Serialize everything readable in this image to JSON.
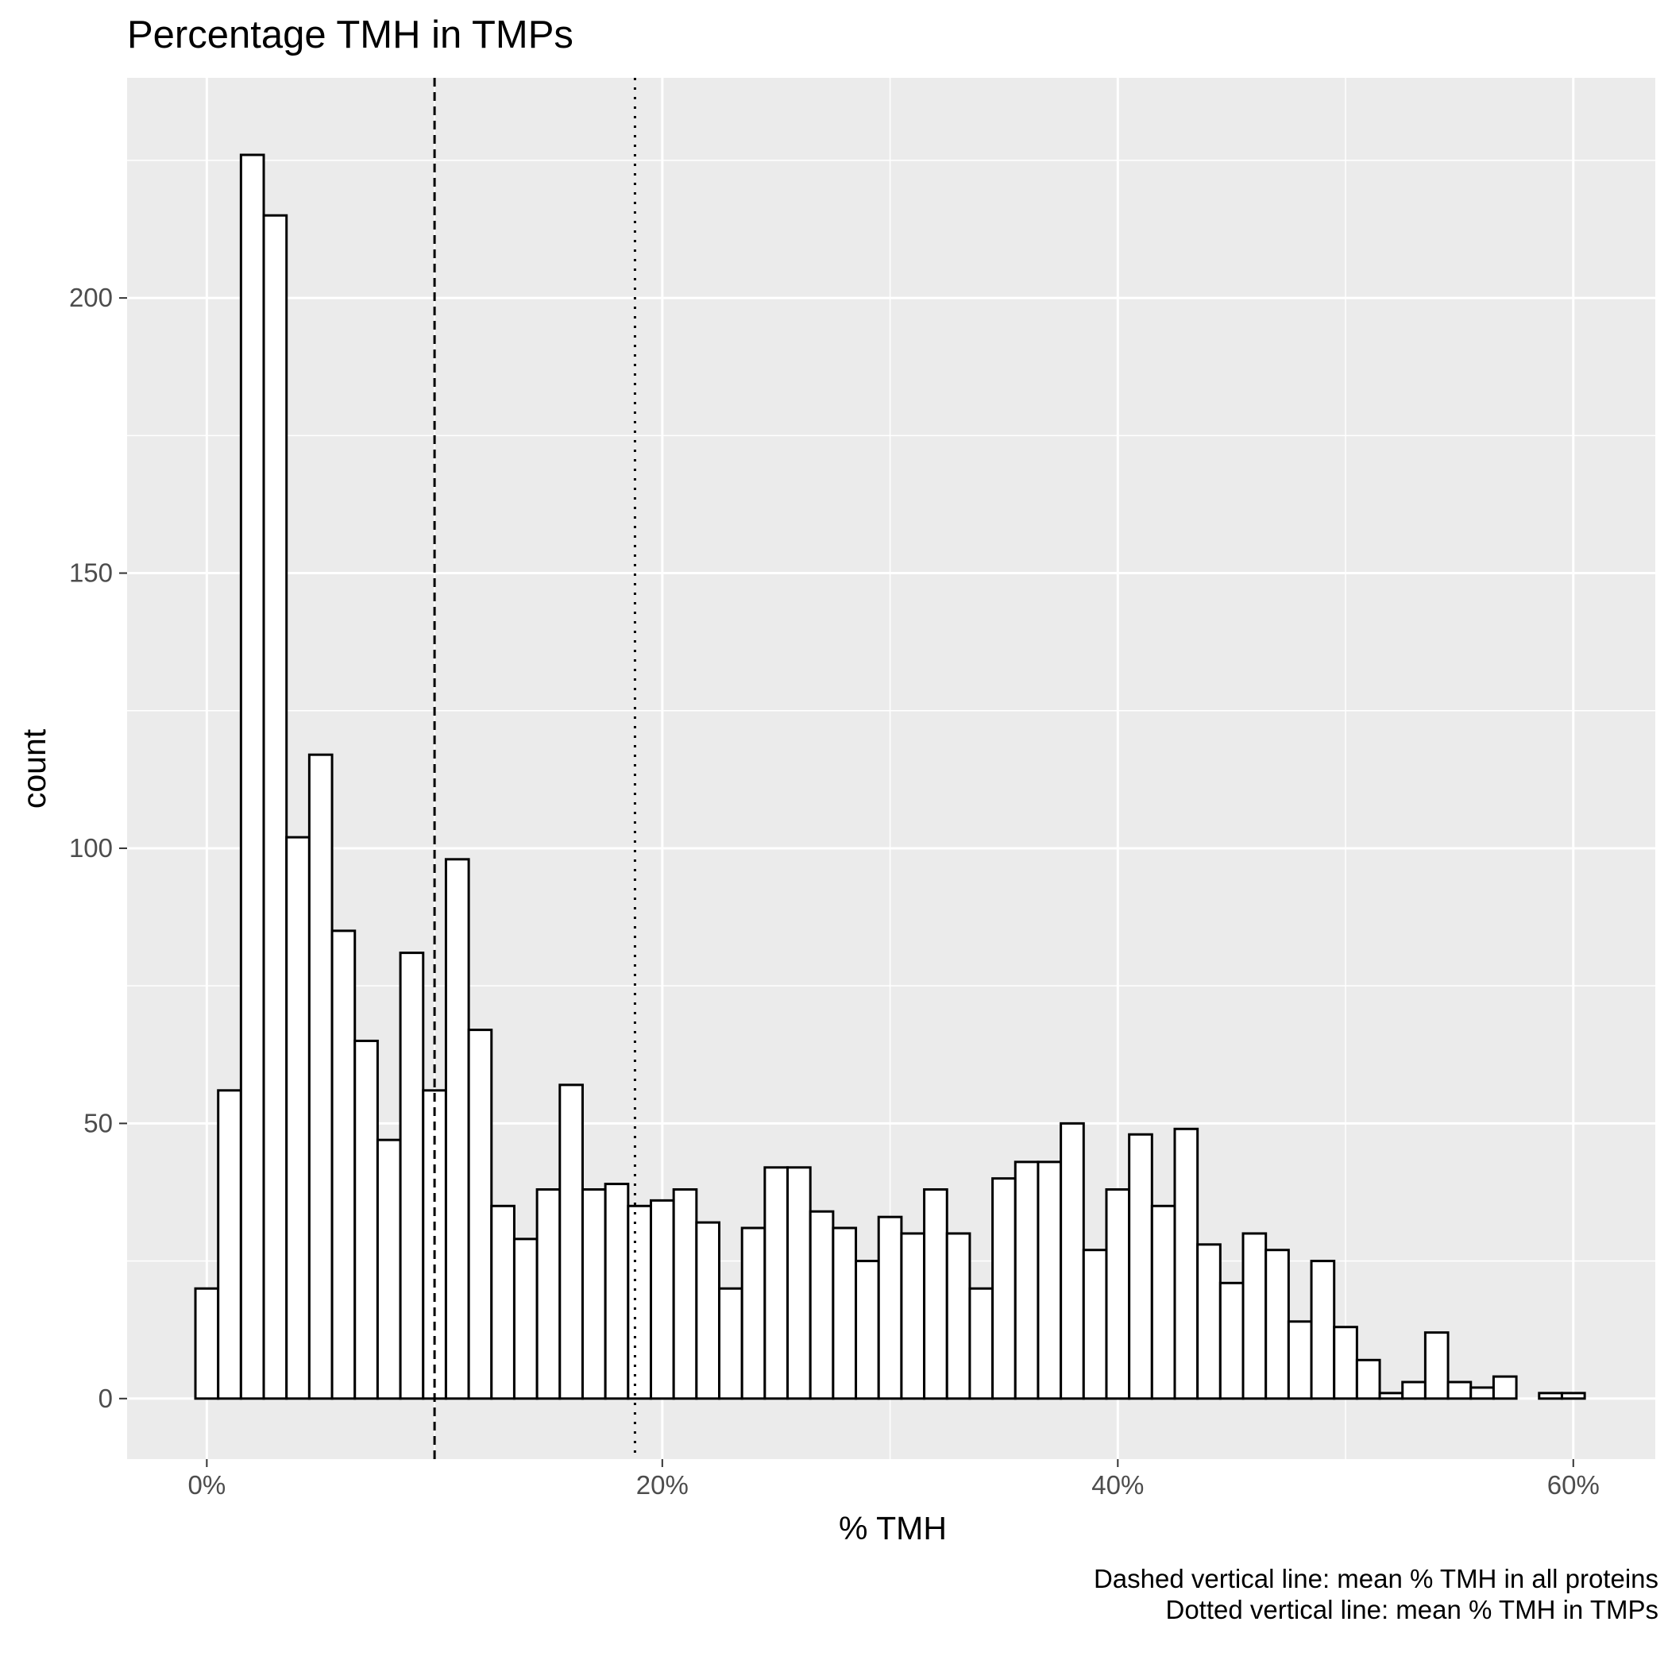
{
  "chart_data": {
    "type": "bar",
    "title": "Percentage TMH in TMPs",
    "xlabel": "% TMH",
    "ylabel": "count",
    "caption_lines": [
      "Dashed vertical line: mean % TMH in all proteins",
      "Dotted vertical line: mean % TMH in TMPs"
    ],
    "xlim": [
      -3.5,
      63.6
    ],
    "ylim": [
      -11,
      240
    ],
    "x_ticks": [
      0,
      20,
      40,
      60
    ],
    "x_tick_labels": [
      "0%",
      "20%",
      "40%",
      "60%"
    ],
    "y_ticks": [
      0,
      50,
      100,
      150,
      200
    ],
    "y_tick_labels": [
      "0",
      "50",
      "100",
      "150",
      "200"
    ],
    "bin_width": 1,
    "bin_centers": [
      0,
      1,
      2,
      3,
      4,
      5,
      6,
      7,
      8,
      9,
      10,
      11,
      12,
      13,
      14,
      15,
      16,
      17,
      18,
      19,
      20,
      21,
      22,
      23,
      24,
      25,
      26,
      27,
      28,
      29,
      30,
      31,
      32,
      33,
      34,
      35,
      36,
      37,
      38,
      39,
      40,
      41,
      42,
      43,
      44,
      45,
      46,
      47,
      48,
      49,
      50,
      51,
      52,
      53,
      54,
      55,
      56,
      57,
      58,
      59,
      60
    ],
    "values": [
      20,
      56,
      226,
      215,
      102,
      117,
      85,
      65,
      47,
      81,
      56,
      98,
      67,
      35,
      29,
      38,
      57,
      38,
      39,
      35,
      36,
      38,
      32,
      20,
      31,
      42,
      42,
      34,
      31,
      25,
      33,
      30,
      38,
      30,
      20,
      40,
      43,
      43,
      50,
      27,
      38,
      48,
      35,
      49,
      28,
      21,
      30,
      27,
      14,
      25,
      13,
      7,
      1,
      3,
      12,
      3,
      2,
      4,
      0,
      1,
      1
    ],
    "vlines": [
      {
        "x": 10,
        "style": "dashed",
        "meaning": "mean % TMH in all proteins"
      },
      {
        "x": 18.8,
        "style": "dotted",
        "meaning": "mean % TMH in TMPs"
      }
    ],
    "panel_color": "#ebebeb",
    "grid": true,
    "bar_fill": "#ffffff",
    "bar_stroke": "#000000"
  }
}
